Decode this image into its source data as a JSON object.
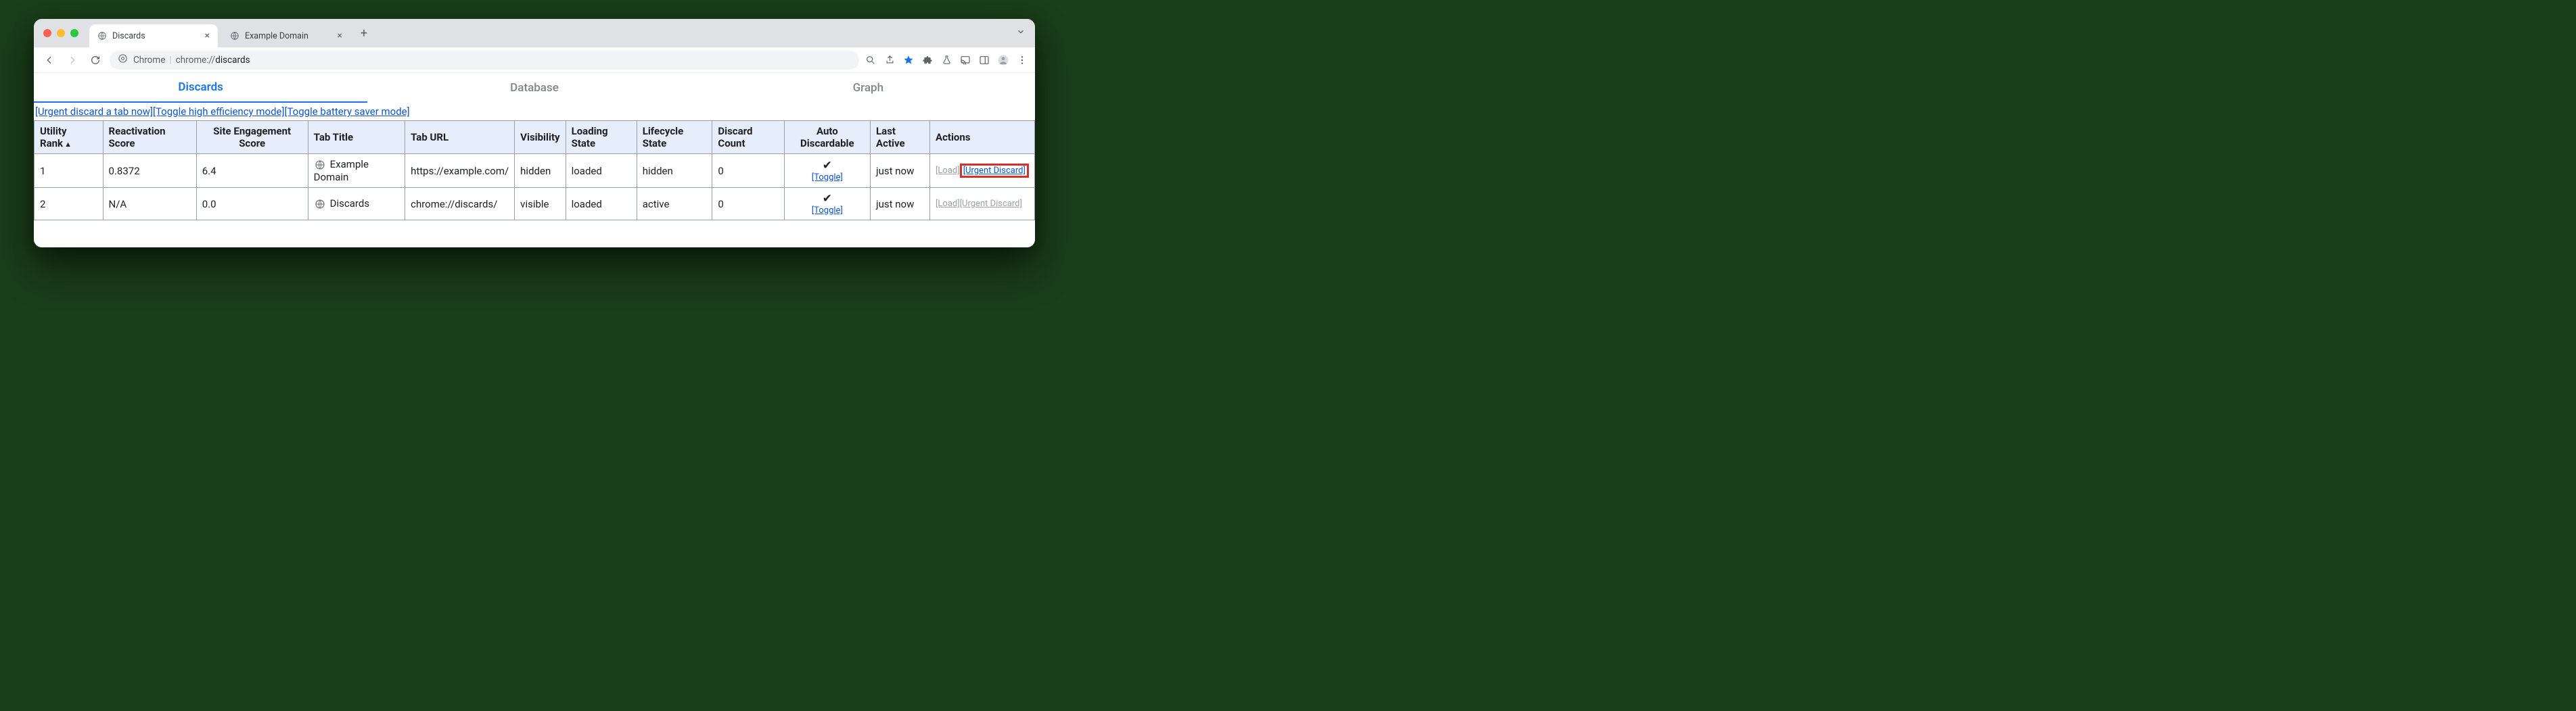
{
  "window": {
    "tabs": [
      {
        "title": "Discards",
        "active": true
      },
      {
        "title": "Example Domain",
        "active": false
      }
    ]
  },
  "toolbar": {
    "chrome_label": "Chrome",
    "url_prefix": "chrome://",
    "url_path": "discards"
  },
  "page_tabs": {
    "discards": "Discards",
    "database": "Database",
    "graph": "Graph"
  },
  "top_actions": {
    "urgent_discard": "[Urgent discard a tab now]",
    "toggle_high_efficiency": "[Toggle high efficiency mode]",
    "toggle_battery_saver": "[Toggle battery saver mode]"
  },
  "table": {
    "columns": {
      "utility_rank": "Utility Rank",
      "reactivation_score": "Reactivation Score",
      "site_engagement_score": "Site Engagement Score",
      "tab_title": "Tab Title",
      "tab_url": "Tab URL",
      "visibility": "Visibility",
      "loading_state": "Loading State",
      "lifecycle_state": "Lifecycle State",
      "discard_count": "Discard Count",
      "auto_discardable": "Auto Discardable",
      "last_active": "Last Active",
      "actions": "Actions"
    },
    "rows": [
      {
        "utility_rank": "1",
        "reactivation_score": "0.8372",
        "site_engagement_score": "6.4",
        "tab_title": "Example Domain",
        "tab_url": "https://example.com/",
        "visibility": "hidden",
        "loading_state": "loaded",
        "lifecycle_state": "hidden",
        "discard_count": "0",
        "auto_discardable_check": "✔",
        "auto_discardable_toggle": "[Toggle]",
        "last_active": "just now",
        "action_load": "[Load]",
        "action_urgent": "[Urgent Discard]",
        "load_enabled": false,
        "urgent_enabled": true,
        "urgent_highlighted": true
      },
      {
        "utility_rank": "2",
        "reactivation_score": "N/A",
        "site_engagement_score": "0.0",
        "tab_title": "Discards",
        "tab_url": "chrome://discards/",
        "visibility": "visible",
        "loading_state": "loaded",
        "lifecycle_state": "active",
        "discard_count": "0",
        "auto_discardable_check": "✔",
        "auto_discardable_toggle": "[Toggle]",
        "last_active": "just now",
        "action_load": "[Load]",
        "action_urgent": "[Urgent Discard]",
        "load_enabled": false,
        "urgent_enabled": false,
        "urgent_highlighted": false
      }
    ]
  },
  "colors": {
    "header_bg": "#e6eefc",
    "border": "#9aa0a6",
    "link": "#1155cc",
    "accent": "#1a73e8",
    "highlight_border": "#d93025",
    "disabled": "#9aa0a6",
    "tabstrip_bg": "#dfe1e5",
    "page_bg": "#ffffff"
  }
}
